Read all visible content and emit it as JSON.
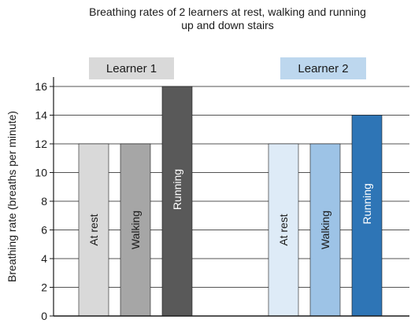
{
  "chart_data": {
    "type": "bar",
    "title": [
      "Breathing rates of 2 learners at rest, walking and running",
      "up and down stairs"
    ],
    "ylabel": "Breathing rate (breaths per minute)",
    "xlabel": "",
    "ylim": [
      0,
      16
    ],
    "yticks": [
      0,
      2,
      4,
      6,
      8,
      10,
      12,
      14,
      16
    ],
    "grid": true,
    "groups": [
      {
        "name": "Learner 1",
        "label_bg": "#d9d9d9",
        "bars": [
          {
            "label": "At rest",
            "value": 12,
            "color": "#d9d9d9",
            "text_color": "#1a1a1a"
          },
          {
            "label": "Walking",
            "value": 12,
            "color": "#a6a6a6",
            "text_color": "#1a1a1a"
          },
          {
            "label": "Running",
            "value": 16,
            "color": "#595959",
            "text_color": "#ffffff"
          }
        ]
      },
      {
        "name": "Learner 2",
        "label_bg": "#bdd7ee",
        "bars": [
          {
            "label": "At rest",
            "value": 12,
            "color": "#deebf7",
            "text_color": "#1a1a1a"
          },
          {
            "label": "Walking",
            "value": 12,
            "color": "#9dc3e6",
            "text_color": "#1a1a1a"
          },
          {
            "label": "Running",
            "value": 14,
            "color": "#2e75b6",
            "text_color": "#ffffff"
          }
        ]
      }
    ]
  }
}
